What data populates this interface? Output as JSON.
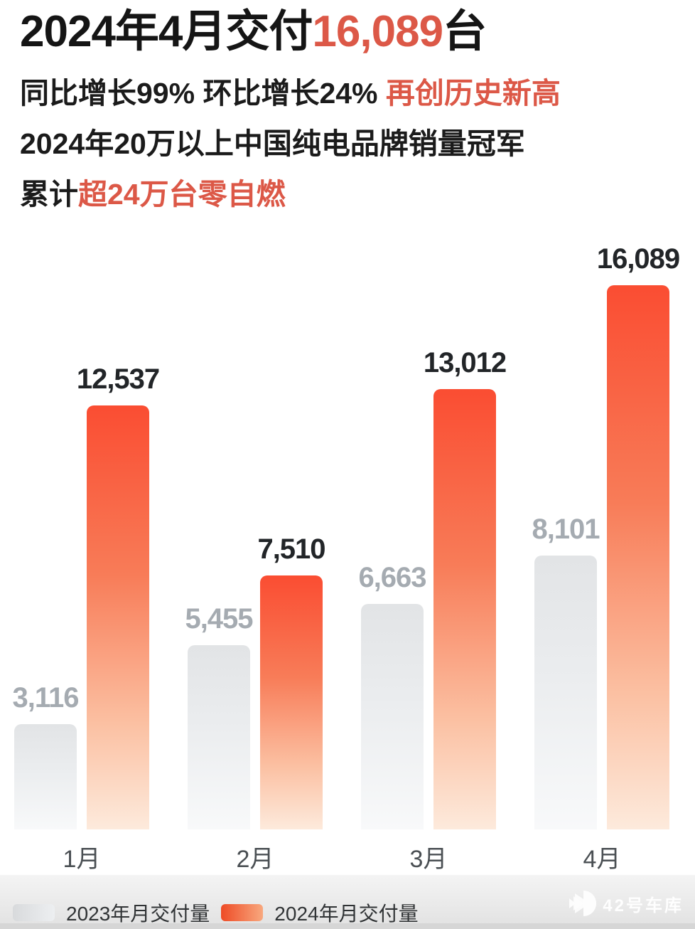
{
  "header": {
    "title_prefix": "2024年4月交付",
    "title_highlight": "16,089",
    "title_suffix": "台",
    "line2_black": "同比增长99% 环比增长24% ",
    "line2_red": "再创历史新高",
    "line3": "2024年20万以上中国纯电品牌销量冠军",
    "line4_black": "累计",
    "line4_red": "超24万台零自燃"
  },
  "chart_data": {
    "type": "bar",
    "title": "2024年4月交付16,089台",
    "categories": [
      "1月",
      "2月",
      "3月",
      "4月"
    ],
    "series": [
      {
        "name": "2023年月交付量",
        "year": "2023",
        "values": [
          3116,
          5455,
          6663,
          8101
        ],
        "labels": [
          "3,116",
          "5,455",
          "6,663",
          "8,101"
        ],
        "color_top": "#e2e4e6",
        "color_bottom": "#f8f9fa",
        "label_color": "#a5abb1"
      },
      {
        "name": "2024年月交付量",
        "year": "2024",
        "values": [
          12537,
          7510,
          13012,
          16089
        ],
        "labels": [
          "12,537",
          "7,510",
          "13,012",
          "16,089"
        ],
        "color_top": "#fa4d32",
        "color_bottom": "#fdeadc",
        "label_color": "#222528"
      }
    ],
    "xlabel": "",
    "ylabel": "",
    "ylim": [
      0,
      16089
    ],
    "grid": false,
    "value_labels": "above bars",
    "legend_position": "bottom-left"
  },
  "legend": {
    "items": [
      {
        "label": "2023年月交付量",
        "swatch": "gray-gradient"
      },
      {
        "label": "2024年月交付量",
        "swatch": "orange-gradient"
      }
    ]
  },
  "watermark": {
    "text": "42号车库"
  },
  "colors": {
    "accent_red_text": "#dc5847",
    "bar_orange_top": "#fa4d32",
    "bar_orange_bottom": "#fdeadc",
    "bar_gray_top": "#e2e4e6",
    "bar_gray_bottom": "#f8f9fa",
    "label_gray": "#a5abb1",
    "label_dark": "#222528",
    "axis_label": "#4a4f53",
    "footer_strip": "#d6d6d6"
  }
}
